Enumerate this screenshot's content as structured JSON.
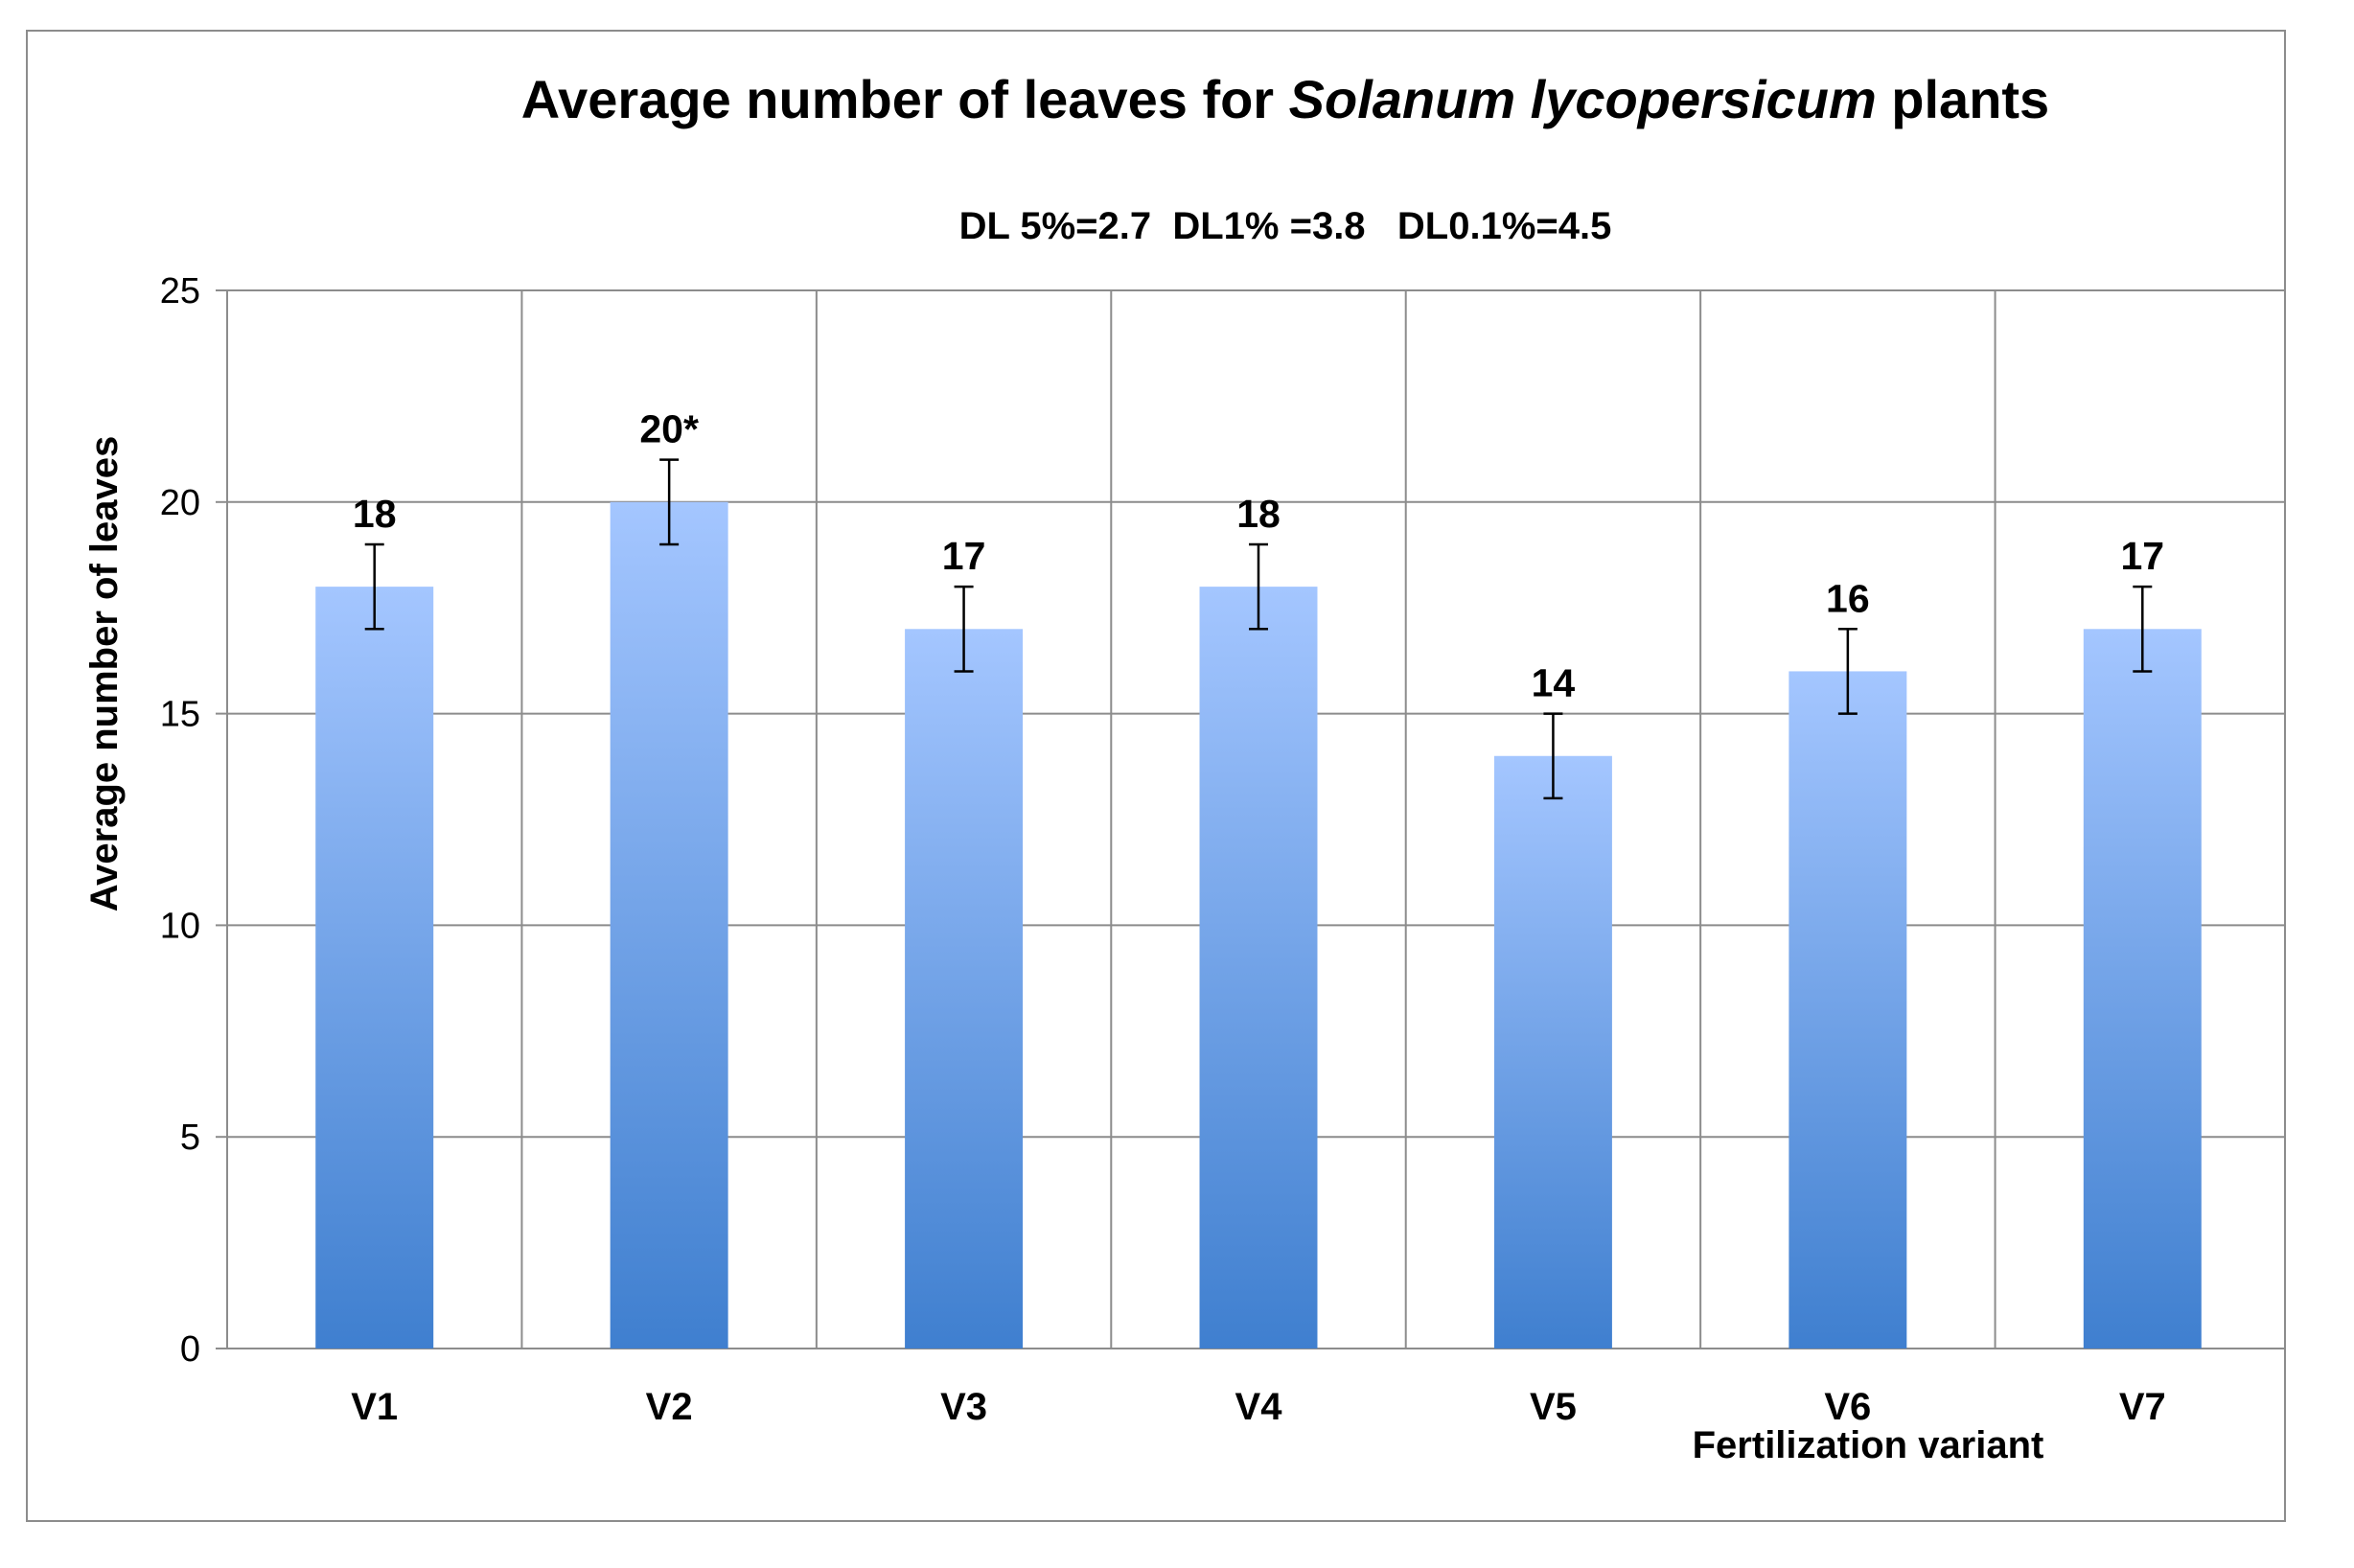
{
  "chart_data": {
    "type": "bar",
    "title": {
      "prefix": "Average number of leaves for ",
      "italic": "Solanum lycopersicum",
      "suffix": " plants"
    },
    "subtitle": "DL 5%=2.7  DL1% =3.8   DL0.1%=4.5",
    "xlabel": "Fertilization variant",
    "ylabel": "Average number of leaves",
    "categories": [
      "V1",
      "V2",
      "V3",
      "V4",
      "V5",
      "V6",
      "V7"
    ],
    "values": [
      18,
      20,
      17,
      18,
      14,
      16,
      17
    ],
    "data_labels": [
      "18",
      "20*",
      "17",
      "18",
      "14",
      "16",
      "17"
    ],
    "error": [
      1,
      1,
      1,
      1,
      1,
      1,
      1
    ],
    "ylim": [
      0,
      25
    ],
    "yticks": [
      0,
      5,
      10,
      15,
      20,
      25
    ],
    "grid": {
      "horizontal": true,
      "vertical": true
    },
    "legend": "none",
    "colors": {
      "bar_top": "#a4c6ff",
      "bar_bottom": "#3f7fcf",
      "grid": "#8c8c8c",
      "frame": "#8c8c8c"
    }
  }
}
